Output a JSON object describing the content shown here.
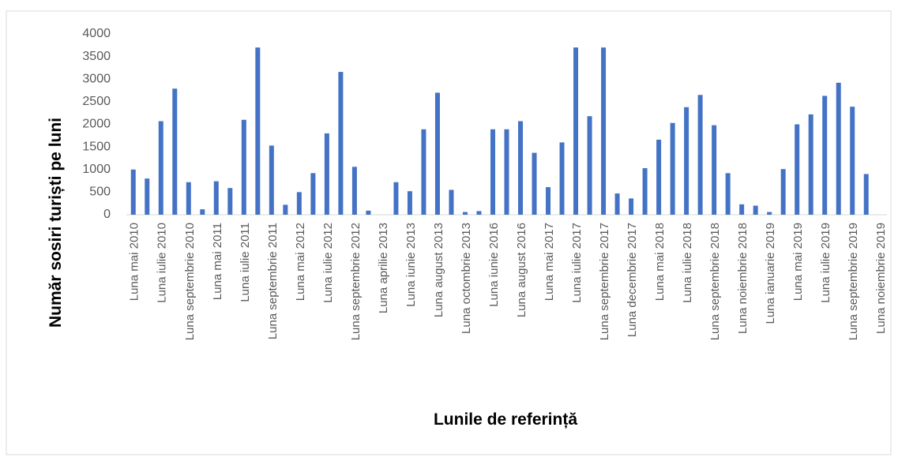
{
  "chart_data": {
    "type": "bar",
    "x_label": "Lunile de referință",
    "y_label": "Număr sosiri turiști pe luni",
    "color": "#4472c4",
    "ylim": [
      0,
      4000
    ],
    "yticks": [
      0,
      500,
      1000,
      1500,
      2000,
      2500,
      3000,
      3500,
      4000
    ],
    "grid": false,
    "categories": [
      "Luna mai 2010",
      null,
      "Luna iulie 2010",
      null,
      "Luna septembrie 2010",
      null,
      "Luna mai 2011",
      null,
      "Luna iulie 2011",
      null,
      "Luna septembrie 2011",
      null,
      "Luna mai 2012",
      null,
      "Luna iulie 2012",
      null,
      "Luna septembrie 2012",
      null,
      "Luna aprilie 2013",
      null,
      "Luna iunie 2013",
      null,
      "Luna august 2013",
      null,
      "Luna octombrie 2013",
      null,
      "Luna iunie 2016",
      null,
      "Luna august 2016",
      null,
      "Luna mai 2017",
      null,
      "Luna iulie 2017",
      null,
      "Luna septembrie 2017",
      null,
      "Luna decembrie 2017",
      null,
      "Luna mai 2018",
      null,
      "Luna iulie 2018",
      null,
      "Luna septembrie 2018",
      null,
      "Luna noiembrie 2018",
      null,
      "Luna ianuarie 2019",
      null,
      "Luna mai 2019",
      null,
      "Luna iulie 2019",
      null,
      "Luna septembrie 2019",
      null,
      "Luna noiembrie 2019"
    ],
    "values": [
      1000,
      800,
      2070,
      2790,
      720,
      120,
      740,
      590,
      2100,
      3700,
      1530,
      220,
      500,
      920,
      1800,
      3160,
      1060,
      90,
      0,
      720,
      520,
      1890,
      2700,
      550,
      60,
      80,
      1890,
      1890,
      2070,
      1370,
      610,
      1600,
      3700,
      2180,
      3700,
      470,
      360,
      1030,
      1660,
      2030,
      2380,
      2650,
      1980,
      920,
      230,
      200,
      60,
      1010,
      2000,
      2220,
      2630,
      2920,
      2390,
      900,
      0
    ]
  }
}
